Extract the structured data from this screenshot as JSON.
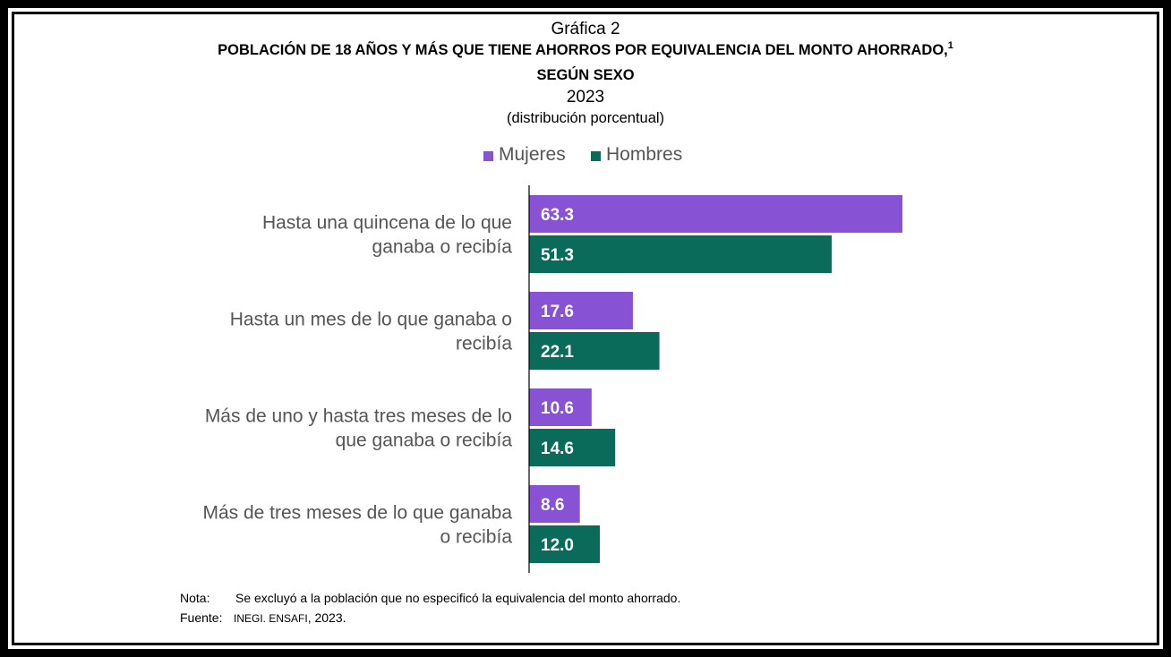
{
  "heading": "Gráfica 2",
  "title_line1": "POBLACIÓN DE 18 AÑOS Y MÁS QUE TIENE AHORROS POR EQUIVALENCIA DEL MONTO AHORRADO,",
  "title_footnote_mark": "1",
  "title_line2": "SEGÚN SEXO",
  "year": "2023",
  "subtitle": "(distribución porcentual)",
  "colors": {
    "mujeres": "#8752d3",
    "hombres": "#0b6b5a",
    "label_text": "#555555"
  },
  "legend": [
    {
      "label": "Mujeres",
      "color": "#8752d3"
    },
    {
      "label": "Hombres",
      "color": "#0b6b5a"
    }
  ],
  "chart_data": {
    "type": "bar",
    "orientation": "horizontal",
    "categories": [
      [
        "Hasta una quincena de lo que",
        "ganaba o recibía"
      ],
      [
        "Hasta un mes de lo que  ganaba o",
        "recibía"
      ],
      [
        "Más de uno y hasta tres meses de lo",
        "que ganaba o recibía"
      ],
      [
        "Más de tres meses de lo que  ganaba",
        "o recibía"
      ]
    ],
    "series": [
      {
        "name": "Mujeres",
        "color": "#8752d3",
        "values": [
          63.3,
          17.6,
          10.6,
          8.6
        ],
        "labels": [
          "63.3",
          "17.6",
          "10.6",
          "8.6"
        ]
      },
      {
        "name": "Hombres",
        "color": "#0b6b5a",
        "values": [
          51.3,
          22.1,
          14.6,
          12.0
        ],
        "labels": [
          "51.3",
          "22.1",
          "14.6",
          "12.0"
        ]
      }
    ],
    "xlim": [
      0,
      70
    ],
    "legend_position": "top",
    "grid": false
  },
  "note": {
    "label": "Nota:",
    "text": "Se excluyó a la población que no especificó la equivalencia del monto ahorrado."
  },
  "source": {
    "label": "Fuente:",
    "org": "INEGI. ENSAFI",
    "year_text": ", 2023."
  }
}
